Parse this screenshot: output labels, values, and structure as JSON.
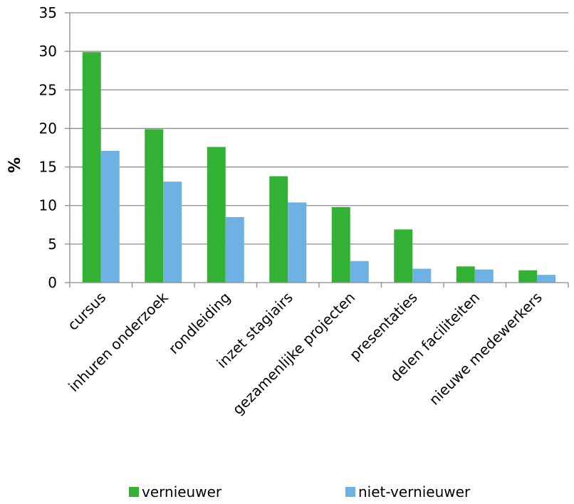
{
  "chart_data": {
    "type": "bar",
    "title": "",
    "xlabel": "",
    "ylabel": "%",
    "ylim": [
      0,
      35
    ],
    "yticks": [
      0,
      5,
      10,
      15,
      20,
      25,
      30,
      35
    ],
    "grid": true,
    "legend_position": "bottom",
    "categories": [
      "cursus",
      "inhuren onderzoek",
      "rondleiding",
      "inzet stagiairs",
      "gezamenlijke projecten",
      "presentaties",
      "delen faciliteiten",
      "nieuwe medewerkers"
    ],
    "series": [
      {
        "name": "vernieuwer",
        "color": "#33B135",
        "values": [
          29.9,
          19.9,
          17.6,
          13.8,
          9.8,
          6.9,
          2.1,
          1.6
        ]
      },
      {
        "name": "niet-vernieuwer",
        "color": "#6EB1E4",
        "values": [
          17.1,
          13.1,
          8.5,
          10.4,
          2.8,
          1.8,
          1.7,
          1.0
        ]
      }
    ]
  }
}
